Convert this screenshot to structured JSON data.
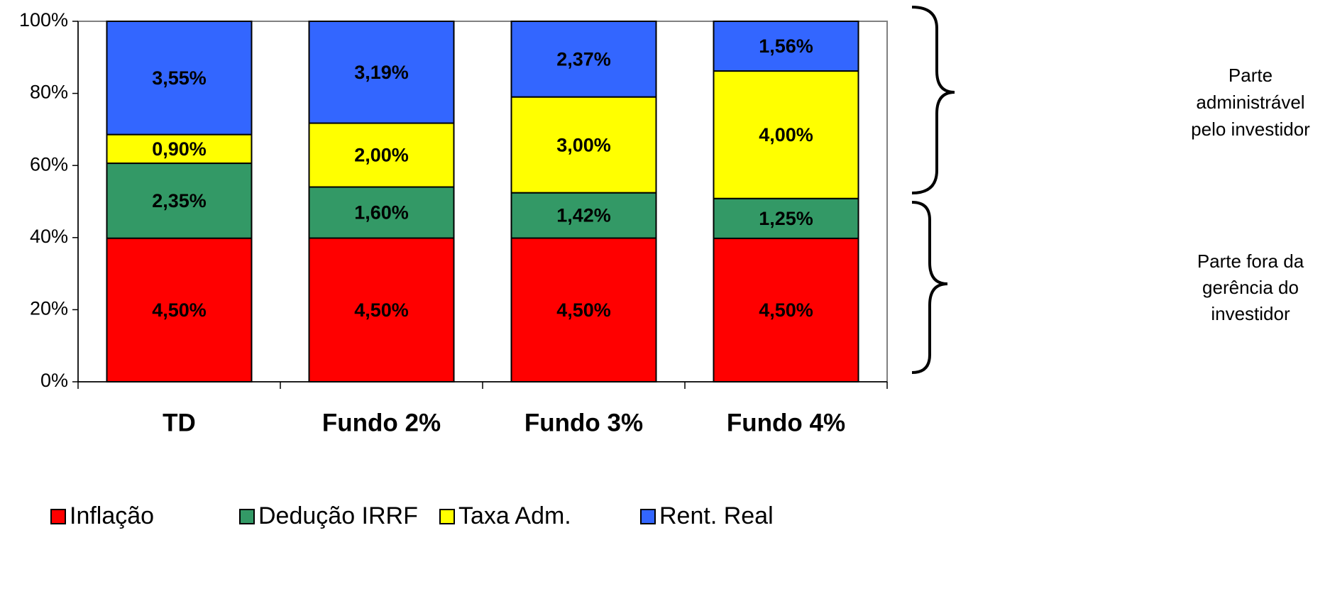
{
  "chart_data": {
    "type": "stacked_percent_bar",
    "categories": [
      "TD",
      "Fundo 2%",
      "Fundo 3%",
      "Fundo 4%"
    ],
    "series": [
      {
        "name": "Inflação",
        "color": "#ff0000",
        "values": [
          4.5,
          4.5,
          4.5,
          4.5
        ],
        "value_labels": [
          "4,50%",
          "4,50%",
          "4,50%",
          "4,50%"
        ]
      },
      {
        "name": "Dedução IRRF",
        "color": "#339966",
        "values": [
          2.35,
          1.6,
          1.42,
          1.25
        ],
        "value_labels": [
          "2,35%",
          "1,60%",
          "1,42%",
          "1,25%"
        ]
      },
      {
        "name": "Taxa Adm.",
        "color": "#ffff00",
        "values": [
          0.9,
          2.0,
          3.0,
          4.0
        ],
        "value_labels": [
          "0,90%",
          "2,00%",
          "3,00%",
          "4,00%"
        ]
      },
      {
        "name": "Rent. Real",
        "color": "#3366ff",
        "values": [
          3.55,
          3.19,
          2.37,
          1.56
        ],
        "value_labels": [
          "3,55%",
          "3,19%",
          "2,37%",
          "1,56%"
        ]
      }
    ],
    "ylim": [
      0,
      100
    ],
    "yticks": [
      {
        "value": 0,
        "label": "0%"
      },
      {
        "value": 20,
        "label": "20%"
      },
      {
        "value": 40,
        "label": "40%"
      },
      {
        "value": 60,
        "label": "60%"
      },
      {
        "value": 80,
        "label": "80%"
      },
      {
        "value": 100,
        "label": "100%"
      }
    ],
    "legend": "bottom",
    "annotations": [
      {
        "lines": [
          "Parte",
          "administrável",
          "pelo investidor"
        ]
      },
      {
        "lines": [
          "Parte fora da",
          "gerência do",
          "investidor"
        ]
      }
    ]
  }
}
